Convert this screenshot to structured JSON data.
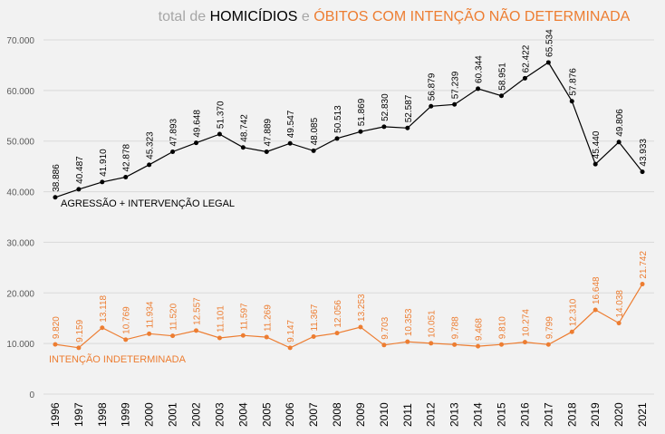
{
  "chart_data": {
    "type": "line",
    "title": {
      "prefix": "total de ",
      "highlight1": "HOMICÍDIOS",
      "connector": " e ",
      "highlight2": "ÓBITOS COM INTENÇÃO NÃO DETERMINADA"
    },
    "colors": {
      "muted": "#a6a6a6",
      "black": "#000000",
      "orange": "#ed7d31",
      "grid": "#d9d9d9",
      "background": "#f2f2f2"
    },
    "x": [
      "1996",
      "1997",
      "1998",
      "1999",
      "2000",
      "2001",
      "2002",
      "2003",
      "2004",
      "2005",
      "2006",
      "2007",
      "2008",
      "2009",
      "2010",
      "2011",
      "2012",
      "2013",
      "2014",
      "2015",
      "2016",
      "2017",
      "2018",
      "2019",
      "2020",
      "2021"
    ],
    "ylim": [
      0,
      70000
    ],
    "y_ticks": [
      0,
      10000,
      20000,
      30000,
      40000,
      50000,
      60000,
      70000
    ],
    "y_tick_labels": [
      "0",
      "10.000",
      "20.000",
      "30.000",
      "40.000",
      "50.000",
      "60.000",
      "70.000"
    ],
    "grid": true,
    "series": [
      {
        "name": "AGRESSÃO + INTERVENÇÃO LEGAL",
        "color": "#000000",
        "values": [
          38886,
          40487,
          41910,
          42878,
          45323,
          47893,
          49648,
          51370,
          48742,
          47889,
          49547,
          48085,
          50513,
          51869,
          52830,
          52587,
          56879,
          57239,
          60344,
          58951,
          62422,
          65534,
          57876,
          45440,
          49806,
          43933
        ],
        "labels": [
          "38.886",
          "40.487",
          "41.910",
          "42.878",
          "45.323",
          "47.893",
          "49.648",
          "51.370",
          "48.742",
          "47.889",
          "49.547",
          "48.085",
          "50.513",
          "51.869",
          "52.830",
          "52.587",
          "56.879",
          "57.239",
          "60.344",
          "58.951",
          "62.422",
          "65.534",
          "57.876",
          "45.440",
          "49.806",
          "43.933"
        ]
      },
      {
        "name": "INTENÇÃO INDETERMINADA",
        "color": "#ed7d31",
        "values": [
          9820,
          9159,
          13118,
          10769,
          11934,
          11520,
          12557,
          11101,
          11597,
          11269,
          9147,
          11367,
          12056,
          13253,
          9703,
          10353,
          10051,
          9788,
          9468,
          9810,
          10274,
          9799,
          12310,
          16648,
          14038,
          21742
        ],
        "labels": [
          "9.820",
          "9.159",
          "13.118",
          "10.769",
          "11.934",
          "11.520",
          "12.557",
          "11.101",
          "11.597",
          "11.269",
          "9.147",
          "11.367",
          "12.056",
          "13.253",
          "9.703",
          "10.353",
          "10.051",
          "9.788",
          "9.468",
          "9.810",
          "10.274",
          "9.799",
          "12.310",
          "16.648",
          "14.038",
          "21.742"
        ]
      }
    ]
  }
}
